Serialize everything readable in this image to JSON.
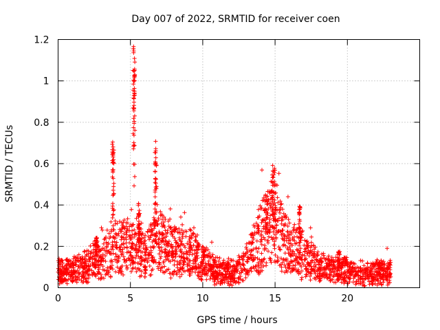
{
  "chart_data": {
    "type": "scatter",
    "title": "Day 007 of 2022, SRMTID for receiver coen",
    "xlabel": "GPS time / hours",
    "ylabel": "SRMTID / TECUs",
    "xlim": [
      0,
      25
    ],
    "ylim": [
      0,
      1.2
    ],
    "x_ticks": [
      0,
      5,
      10,
      15,
      20
    ],
    "x_tick_labels": [
      "0",
      "5",
      "10",
      "15",
      "20"
    ],
    "y_ticks": [
      0,
      0.2,
      0.4,
      0.6,
      0.8,
      1,
      1.2
    ],
    "y_tick_labels": [
      "0",
      "0.2",
      "0.4",
      "0.6",
      "0.8",
      "1",
      "1.2"
    ],
    "grid": true,
    "marker": "+",
    "color": "#ff0000",
    "x_end": 23,
    "baseline_profile": [
      [
        0,
        0.08
      ],
      [
        1.0,
        0.075
      ],
      [
        2.0,
        0.1
      ],
      [
        2.6,
        0.14
      ],
      [
        3.0,
        0.13
      ],
      [
        3.5,
        0.16
      ],
      [
        4.0,
        0.2
      ],
      [
        4.5,
        0.19
      ],
      [
        5.0,
        0.2
      ],
      [
        5.5,
        0.21
      ],
      [
        6.0,
        0.16
      ],
      [
        6.5,
        0.19
      ],
      [
        7.0,
        0.22
      ],
      [
        7.5,
        0.2
      ],
      [
        8.0,
        0.18
      ],
      [
        9.0,
        0.18
      ],
      [
        9.7,
        0.14
      ],
      [
        10.5,
        0.1
      ],
      [
        11.5,
        0.07
      ],
      [
        12.3,
        0.08
      ],
      [
        13.0,
        0.12
      ],
      [
        13.7,
        0.2
      ],
      [
        14.2,
        0.28
      ],
      [
        14.8,
        0.33
      ],
      [
        15.2,
        0.3
      ],
      [
        15.6,
        0.22
      ],
      [
        16.2,
        0.19
      ],
      [
        17.0,
        0.16
      ],
      [
        17.6,
        0.12
      ],
      [
        18.2,
        0.1
      ],
      [
        19.0,
        0.08
      ],
      [
        19.5,
        0.09
      ],
      [
        20.0,
        0.08
      ],
      [
        20.8,
        0.06
      ],
      [
        21.5,
        0.07
      ],
      [
        22.2,
        0.08
      ],
      [
        23.0,
        0.07
      ]
    ],
    "spikes": [
      {
        "x": 3.8,
        "width": 0.12,
        "peak": 0.71
      },
      {
        "x": 5.25,
        "width": 0.12,
        "peak": 1.18
      },
      {
        "x": 5.6,
        "width": 0.1,
        "peak": 0.41
      },
      {
        "x": 6.75,
        "width": 0.12,
        "peak": 0.71
      },
      {
        "x": 14.9,
        "width": 0.25,
        "peak": 0.62
      },
      {
        "x": 14.4,
        "width": 0.25,
        "peak": 0.45
      },
      {
        "x": 16.7,
        "width": 0.1,
        "peak": 0.4
      },
      {
        "x": 2.65,
        "width": 0.1,
        "peak": 0.25
      },
      {
        "x": 19.4,
        "width": 0.15,
        "peak": 0.18
      }
    ]
  }
}
